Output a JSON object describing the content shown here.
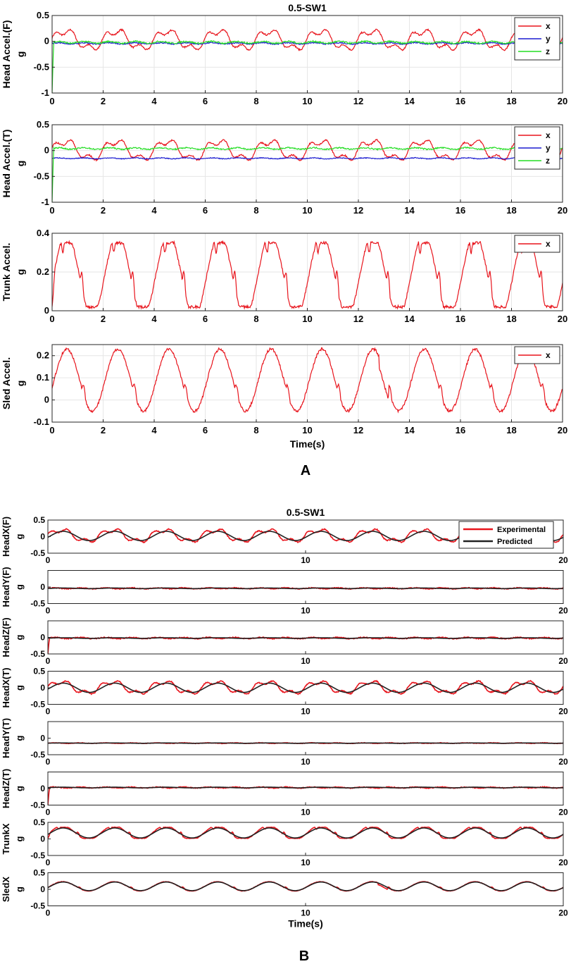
{
  "figure": {
    "panel_a_label": "A",
    "panel_b_label": "B"
  },
  "colors": {
    "x": "#e8141c",
    "y": "#1c1cd0",
    "z": "#22dd22",
    "experimental": "#e8141c",
    "predicted": "#222222"
  },
  "chart_data": [
    {
      "type": "line",
      "panel": "A",
      "title": "0.5-SW1",
      "ylabel": "Head Accel.(F)",
      "yunit": "g",
      "xlabel": "",
      "xlim": [
        0,
        20
      ],
      "ylim": [
        -1,
        0.5
      ],
      "xticks": [
        0,
        2,
        4,
        6,
        8,
        10,
        12,
        14,
        16,
        18,
        20
      ],
      "yticks": [
        -1,
        -0.5,
        0,
        0.5
      ],
      "grid": true,
      "legend": "top-right",
      "series": [
        {
          "name": "x",
          "color": "#e8141c",
          "kind": "head_x",
          "amp": 0.17,
          "offset": 0.03
        },
        {
          "name": "y",
          "color": "#1c1cd0",
          "kind": "flat",
          "base": -0.04,
          "ripple": 0.02
        },
        {
          "name": "z",
          "color": "#22dd22",
          "kind": "flat",
          "base": -0.02,
          "ripple": 0.03,
          "start_spike": -1.0
        }
      ]
    },
    {
      "type": "line",
      "panel": "A",
      "ylabel": "Head Accel.(T)",
      "yunit": "g",
      "xlabel": "",
      "xlim": [
        0,
        20
      ],
      "ylim": [
        -1,
        0.5
      ],
      "xticks": [
        0,
        2,
        4,
        6,
        8,
        10,
        12,
        14,
        16,
        18,
        20
      ],
      "yticks": [
        -1,
        -0.5,
        0,
        0.5
      ],
      "grid": true,
      "legend": "top-right",
      "series": [
        {
          "name": "x",
          "color": "#e8141c",
          "kind": "head_x",
          "amp": 0.17,
          "offset": 0.01
        },
        {
          "name": "y",
          "color": "#1c1cd0",
          "kind": "flat",
          "base": -0.15,
          "ripple": 0.015
        },
        {
          "name": "z",
          "color": "#22dd22",
          "kind": "flat",
          "base": 0.04,
          "ripple": 0.025,
          "start_spike": -1.0
        }
      ]
    },
    {
      "type": "line",
      "panel": "A",
      "ylabel": "Trunk Accel.",
      "yunit": "g",
      "xlabel": "",
      "xlim": [
        0,
        20
      ],
      "ylim": [
        0,
        0.4
      ],
      "xticks": [
        0,
        2,
        4,
        6,
        8,
        10,
        12,
        14,
        16,
        18,
        20
      ],
      "yticks": [
        0,
        0.2,
        0.4
      ],
      "grid": true,
      "legend": "top-right",
      "series": [
        {
          "name": "x",
          "color": "#e8141c",
          "kind": "trunk",
          "low": 0.02,
          "high": 0.35
        }
      ]
    },
    {
      "type": "line",
      "panel": "A",
      "ylabel": "Sled Accel.",
      "yunit": "g",
      "xlabel": "Time(s)",
      "xlim": [
        0,
        20
      ],
      "ylim": [
        -0.1,
        0.25
      ],
      "xticks": [
        0,
        2,
        4,
        6,
        8,
        10,
        12,
        14,
        16,
        18,
        20
      ],
      "yticks": [
        -0.1,
        0,
        0.1,
        0.2
      ],
      "grid": true,
      "legend": "top-right",
      "series": [
        {
          "name": "x",
          "color": "#e8141c",
          "kind": "sled",
          "low": -0.05,
          "high": 0.23
        }
      ]
    },
    {
      "type": "line",
      "panel": "B",
      "title": "0.5-SW1",
      "ylabel": "HeadX(F)",
      "yunit": "g",
      "xlabel": "",
      "xlim": [
        0,
        20
      ],
      "ylim": [
        -0.5,
        0.5
      ],
      "xticks": [
        0,
        10,
        20
      ],
      "yticks": [
        -0.5,
        0,
        0.5
      ],
      "grid": false,
      "legend": "top-right",
      "series": [
        {
          "name": "Experimental",
          "color": "#e8141c",
          "kind": "head_x",
          "amp": 0.17,
          "offset": 0.03
        },
        {
          "name": "Predicted",
          "color": "#222222",
          "kind": "sine",
          "amp": 0.14,
          "offset": 0.02
        }
      ]
    },
    {
      "type": "line",
      "panel": "B",
      "ylabel": "HeadY(F)",
      "yunit": "g",
      "xlabel": "",
      "xlim": [
        0,
        20
      ],
      "ylim": [
        -0.5,
        0.5
      ],
      "xticks": [
        0,
        10,
        20
      ],
      "yticks": [
        -0.5,
        0
      ],
      "grid": false,
      "series": [
        {
          "kind": "flat",
          "base": -0.04,
          "ripple": 0.025,
          "color": "#e8141c"
        },
        {
          "kind": "sine",
          "amp": 0.01,
          "offset": -0.04,
          "color": "#222222"
        }
      ]
    },
    {
      "type": "line",
      "panel": "B",
      "ylabel": "HeadZ(F)",
      "yunit": "g",
      "xlabel": "",
      "xlim": [
        0,
        20
      ],
      "ylim": [
        -0.5,
        0.5
      ],
      "xticks": [
        0,
        10,
        20
      ],
      "yticks": [
        -0.5,
        0
      ],
      "grid": false,
      "series": [
        {
          "kind": "flat",
          "base": -0.02,
          "ripple": 0.03,
          "start_spike": -0.5,
          "color": "#e8141c"
        },
        {
          "kind": "sine",
          "amp": 0.01,
          "offset": -0.02,
          "color": "#222222"
        }
      ]
    },
    {
      "type": "line",
      "panel": "B",
      "ylabel": "HeadX(T)",
      "yunit": "g",
      "xlabel": "",
      "xlim": [
        0,
        20
      ],
      "ylim": [
        -0.5,
        0.5
      ],
      "xticks": [
        0,
        10,
        20
      ],
      "yticks": [
        -0.5,
        0,
        0.5
      ],
      "grid": false,
      "series": [
        {
          "kind": "head_x",
          "amp": 0.17,
          "offset": 0.01,
          "color": "#e8141c"
        },
        {
          "kind": "sine",
          "amp": 0.14,
          "offset": 0.0,
          "color": "#222222"
        }
      ]
    },
    {
      "type": "line",
      "panel": "B",
      "ylabel": "HeadY(T)",
      "yunit": "g",
      "xlabel": "",
      "xlim": [
        0,
        20
      ],
      "ylim": [
        -0.5,
        0.5
      ],
      "xticks": [
        0,
        10,
        20
      ],
      "yticks": [
        -0.5,
        0
      ],
      "grid": false,
      "series": [
        {
          "kind": "flat",
          "base": -0.15,
          "ripple": 0.015,
          "color": "#e8141c"
        },
        {
          "kind": "sine",
          "amp": 0.005,
          "offset": -0.15,
          "color": "#222222"
        }
      ]
    },
    {
      "type": "line",
      "panel": "B",
      "ylabel": "HeadZ(T)",
      "yunit": "g",
      "xlabel": "",
      "xlim": [
        0,
        20
      ],
      "ylim": [
        -0.5,
        0.5
      ],
      "xticks": [
        0,
        10,
        20
      ],
      "yticks": [
        -0.5,
        0
      ],
      "grid": false,
      "series": [
        {
          "kind": "flat",
          "base": 0.03,
          "ripple": 0.025,
          "start_spike": -0.5,
          "color": "#e8141c"
        },
        {
          "kind": "sine",
          "amp": 0.01,
          "offset": 0.03,
          "color": "#222222"
        }
      ]
    },
    {
      "type": "line",
      "panel": "B",
      "ylabel": "TrunkX",
      "yunit": "g",
      "xlabel": "",
      "xlim": [
        0,
        20
      ],
      "ylim": [
        -0.5,
        0.5
      ],
      "xticks": [
        0,
        10,
        20
      ],
      "yticks": [
        -0.5,
        0,
        0.5
      ],
      "grid": false,
      "series": [
        {
          "kind": "trunk",
          "low": 0.02,
          "high": 0.35,
          "color": "#e8141c"
        },
        {
          "kind": "sine",
          "amp": 0.15,
          "offset": 0.18,
          "color": "#222222"
        }
      ]
    },
    {
      "type": "line",
      "panel": "B",
      "ylabel": "SledX",
      "yunit": "g",
      "xlabel": "Time(s)",
      "xlim": [
        0,
        20
      ],
      "ylim": [
        -0.5,
        0.5
      ],
      "xticks": [
        0,
        10,
        20
      ],
      "yticks": [
        -0.5,
        0,
        0.5
      ],
      "grid": false,
      "series": [
        {
          "kind": "sled",
          "low": -0.05,
          "high": 0.23,
          "color": "#e8141c"
        },
        {
          "kind": "sine",
          "amp": 0.13,
          "offset": 0.09,
          "color": "#222222"
        }
      ]
    }
  ]
}
